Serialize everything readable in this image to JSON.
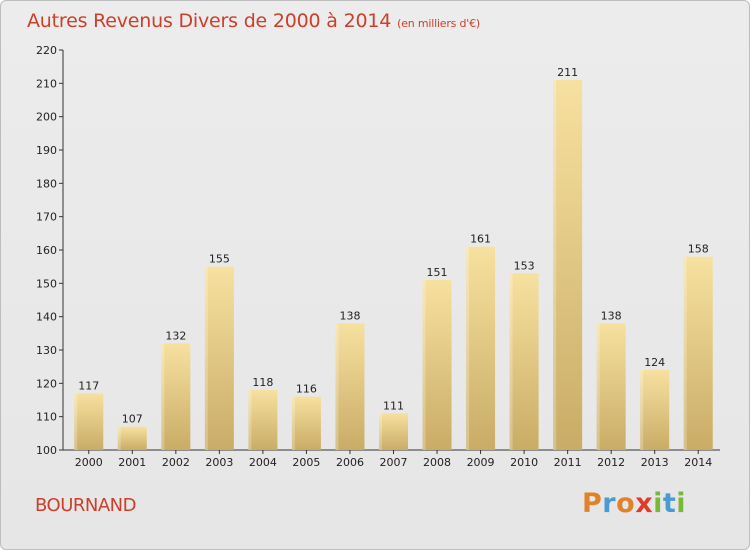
{
  "header": {
    "title": "Autres Revenus Divers de 2000 à 2014",
    "subtitle": "(en milliers d'€)"
  },
  "footer": {
    "commune": "BOURNAND",
    "logo": "Proxiti"
  },
  "colors": {
    "title": "#cc3f2a",
    "bar_light": "#f7e1a0",
    "bar_dark": "#c9ac66",
    "logo_letters": [
      "#e0822a",
      "#4a9ad4",
      "#e0822a",
      "#e23a2a",
      "#7ab83a",
      "#4a9ad4",
      "#7ab83a"
    ]
  },
  "chart_data": {
    "type": "bar",
    "categories": [
      "2000",
      "2001",
      "2002",
      "2003",
      "2004",
      "2005",
      "2006",
      "2007",
      "2008",
      "2009",
      "2010",
      "2011",
      "2012",
      "2013",
      "2014"
    ],
    "values": [
      117,
      107,
      132,
      155,
      118,
      116,
      138,
      111,
      151,
      161,
      153,
      211,
      138,
      124,
      158
    ],
    "title": "Autres Revenus Divers de 2000 à 2014",
    "subtitle": "(en milliers d'€)",
    "xlabel": "",
    "ylabel": "",
    "ylim": [
      100,
      220
    ],
    "yticks": [
      100,
      110,
      120,
      130,
      140,
      150,
      160,
      170,
      180,
      190,
      200,
      210,
      220
    ],
    "grid": false,
    "legend": "none"
  }
}
